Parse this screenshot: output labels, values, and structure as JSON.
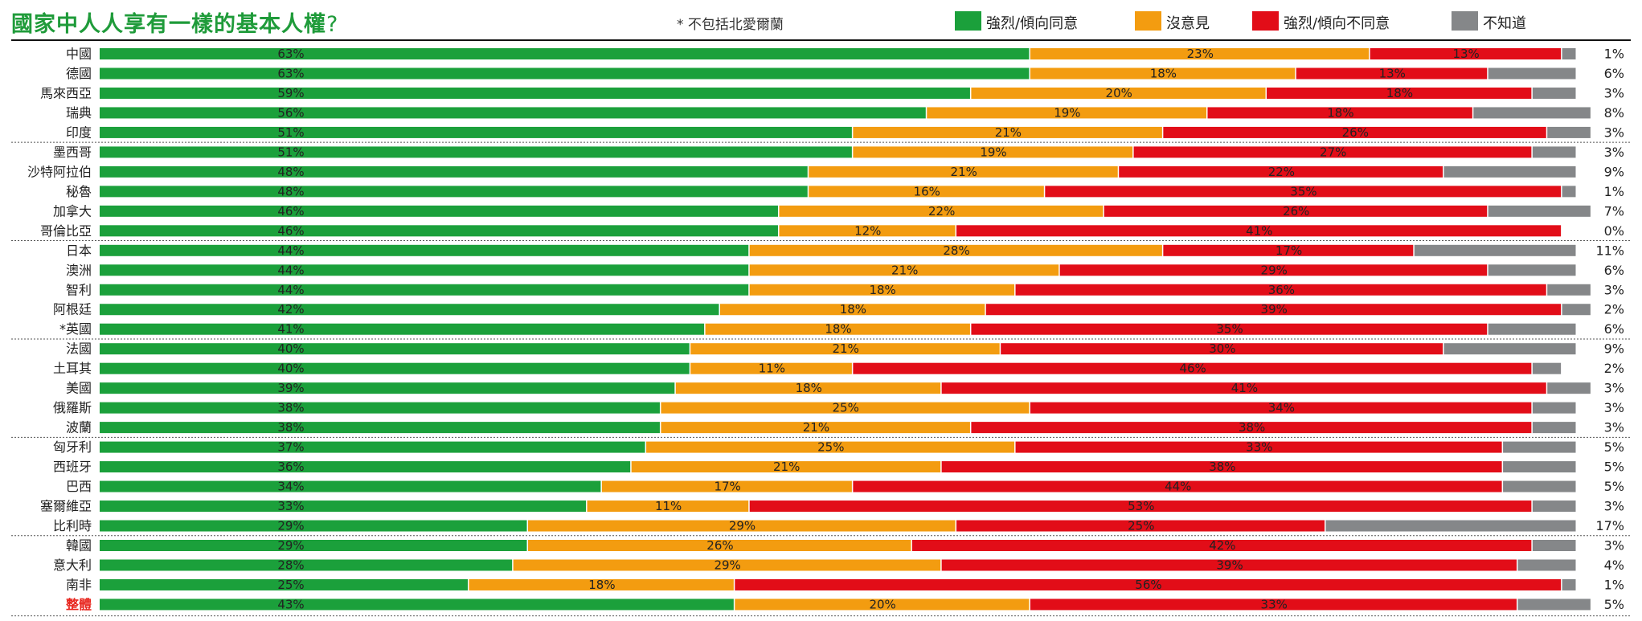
{
  "title": "國家中人人享有一樣的基本人權",
  "title_suffix": "?",
  "footnote": "* 不包括北愛爾蘭",
  "colors": {
    "title": "#1f9b3a",
    "agree": "#1ba03b",
    "neutral": "#f39c10",
    "disagree": "#e20d18",
    "dont_know": "#858789",
    "overall_label": "#e8261e"
  },
  "legend": [
    {
      "label": "強烈/傾向同意",
      "color": "#1ba03b"
    },
    {
      "label": "沒意見",
      "color": "#f39c10"
    },
    {
      "label": "強烈/傾向不同意",
      "color": "#e20d18"
    },
    {
      "label": "不知道",
      "color": "#858789"
    }
  ],
  "chart_data": {
    "type": "bar",
    "orientation": "horizontal",
    "stacked": true,
    "title": "國家中人人享有一樣的基本人權?",
    "unit": "%",
    "grid": false,
    "legend_position": "top-right",
    "series_names": [
      "強烈/傾向同意",
      "沒意見",
      "強烈/傾向不同意",
      "不知道"
    ],
    "rows": [
      {
        "country": "中國",
        "values": [
          63,
          23,
          13,
          1
        ]
      },
      {
        "country": "德國",
        "values": [
          63,
          18,
          13,
          6
        ]
      },
      {
        "country": "馬來西亞",
        "values": [
          59,
          20,
          18,
          3
        ]
      },
      {
        "country": "瑞典",
        "values": [
          56,
          19,
          18,
          8
        ]
      },
      {
        "country": "印度",
        "values": [
          51,
          21,
          26,
          3
        ]
      },
      {
        "country": "墨西哥",
        "values": [
          51,
          19,
          27,
          3
        ]
      },
      {
        "country": "沙特阿拉伯",
        "values": [
          48,
          21,
          22,
          9
        ]
      },
      {
        "country": "秘魯",
        "values": [
          48,
          16,
          35,
          1
        ]
      },
      {
        "country": "加拿大",
        "values": [
          46,
          22,
          26,
          7
        ]
      },
      {
        "country": "哥倫比亞",
        "values": [
          46,
          12,
          41,
          0
        ]
      },
      {
        "country": "日本",
        "values": [
          44,
          28,
          17,
          11
        ]
      },
      {
        "country": "澳洲",
        "values": [
          44,
          21,
          29,
          6
        ]
      },
      {
        "country": "智利",
        "values": [
          44,
          18,
          36,
          3
        ]
      },
      {
        "country": "阿根廷",
        "values": [
          42,
          18,
          39,
          2
        ]
      },
      {
        "country": "*英國",
        "values": [
          41,
          18,
          35,
          6
        ]
      },
      {
        "country": "法國",
        "values": [
          40,
          21,
          30,
          9
        ]
      },
      {
        "country": "土耳其",
        "values": [
          40,
          11,
          46,
          2
        ]
      },
      {
        "country": "美國",
        "values": [
          39,
          18,
          41,
          3
        ]
      },
      {
        "country": "俄羅斯",
        "values": [
          38,
          25,
          34,
          3
        ]
      },
      {
        "country": "波蘭",
        "values": [
          38,
          21,
          38,
          3
        ]
      },
      {
        "country": "匈牙利",
        "values": [
          37,
          25,
          33,
          5
        ]
      },
      {
        "country": "西班牙",
        "values": [
          36,
          21,
          38,
          5
        ]
      },
      {
        "country": "巴西",
        "values": [
          34,
          17,
          44,
          5
        ]
      },
      {
        "country": "塞爾維亞",
        "values": [
          33,
          11,
          53,
          3
        ]
      },
      {
        "country": "比利時",
        "values": [
          29,
          29,
          25,
          17
        ]
      },
      {
        "country": "韓國",
        "values": [
          29,
          26,
          42,
          3
        ]
      },
      {
        "country": "意大利",
        "values": [
          28,
          29,
          39,
          4
        ]
      },
      {
        "country": "南非",
        "values": [
          25,
          18,
          56,
          1
        ]
      },
      {
        "country": "整體",
        "values": [
          43,
          20,
          33,
          5
        ],
        "highlight": true
      }
    ],
    "group_separators_after_row": [
      4,
      9,
      14,
      19,
      24
    ]
  }
}
